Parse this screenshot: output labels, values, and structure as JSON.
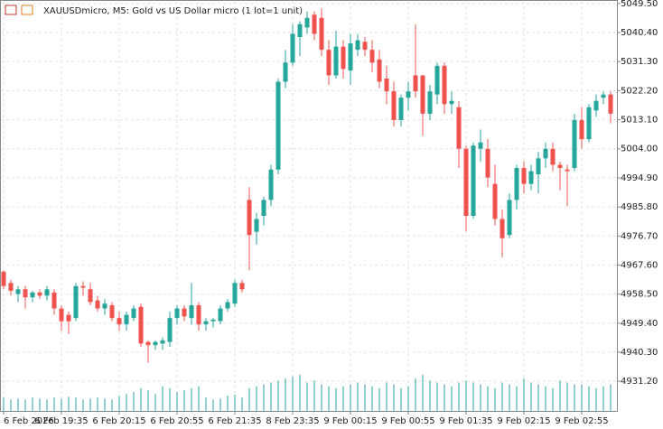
{
  "chart_data": {
    "type": "candlestick",
    "title": "XAUUSDmicro, M5:  Gold vs US Dollar micro (1 lot=1 unit)",
    "up_color": "#26a69a",
    "down_color": "#ef5350",
    "volume_color": "#26a69a",
    "grid": true,
    "ylim": [
      4921.9,
      5050.6
    ],
    "yticks": [
      {
        "value": 5049.5,
        "label": "5049.50"
      },
      {
        "value": 5040.4,
        "label": "5040.40"
      },
      {
        "value": 5031.3,
        "label": "5031.30"
      },
      {
        "value": 5022.2,
        "label": "5022.20"
      },
      {
        "value": 5013.1,
        "label": "5013.10"
      },
      {
        "value": 5004,
        "label": "5004.00"
      },
      {
        "value": 4994.9,
        "label": "4994.90"
      },
      {
        "value": 4985.8,
        "label": "4985.80"
      },
      {
        "value": 4976.7,
        "label": "4976.70"
      },
      {
        "value": 4967.6,
        "label": "4967.60"
      },
      {
        "value": 4958.5,
        "label": "4958.50"
      },
      {
        "value": 4949.4,
        "label": "4949.40"
      },
      {
        "value": 4940.3,
        "label": "4940.30"
      },
      {
        "value": 4931.2,
        "label": "4931.20"
      }
    ],
    "categories": [
      "6 Feb 2026",
      null,
      null,
      null,
      null,
      null,
      null,
      null,
      "6 Feb 19:35",
      null,
      null,
      null,
      null,
      null,
      null,
      null,
      "6 Feb 20:15",
      null,
      null,
      null,
      null,
      null,
      null,
      null,
      "6 Feb 20:55",
      null,
      null,
      null,
      null,
      null,
      null,
      null,
      "6 Feb 21:35",
      null,
      null,
      null,
      null,
      null,
      null,
      null,
      "8 Feb 23:35",
      null,
      null,
      null,
      null,
      null,
      null,
      null,
      "9 Feb 00:15",
      null,
      null,
      null,
      null,
      null,
      null,
      null,
      "9 Feb 00:55",
      null,
      null,
      null,
      null,
      null,
      null,
      null,
      "9 Feb 01:35",
      null,
      null,
      null,
      null,
      null,
      null,
      null,
      "9 Feb 02:15",
      null,
      null,
      null,
      null,
      null,
      null,
      null,
      "9 Feb 02:55",
      null,
      null,
      null,
      null
    ],
    "open": [
      4965.5,
      4962,
      4958.5,
      4960,
      4957.5,
      4959,
      4958,
      4959,
      4954,
      4952,
      4951,
      4961,
      4960,
      4956.5,
      4954,
      4955,
      4951,
      4949,
      4951,
      4954.5,
      4943.5,
      4942.5,
      4943,
      4943.5,
      4951,
      4954,
      4951,
      4955,
      4949,
      4950,
      4950,
      4954,
      4955.5,
      4962,
      4988,
      4978,
      4983,
      4988,
      4997.5,
      5025,
      5031,
      5039,
      5042,
      5046,
      5045,
      5035,
      5027,
      5036,
      5028.5,
      5035,
      5037.5,
      5035,
      5032,
      5026,
      5022,
      5013,
      5020,
      5027,
      5027,
      5015,
      5021,
      5030,
      5018,
      5017,
      5004,
      4983,
      5004,
      5004,
      4993,
      4982,
      4977,
      4988,
      4998,
      4993,
      4996,
      5001,
      5004,
      4999,
      4997.5,
      4998,
      5013,
      5007,
      5016,
      5020,
      5021
    ],
    "high": [
      4966,
      4963,
      4961,
      4961,
      4959.5,
      4960,
      4961,
      4960,
      4955,
      4953,
      4962,
      4962.5,
      4962,
      4958,
      4957,
      4956,
      4953,
      4953,
      4955,
      4955.5,
      4944,
      4944,
      4945,
      4953,
      4955,
      4955,
      4962,
      4956,
      4951,
      4951,
      4955,
      4957,
      4963,
      4963,
      4992,
      4984,
      4989,
      4999,
      5026,
      5035,
      5043,
      5044,
      5047,
      5047,
      5048,
      5038,
      5041,
      5038,
      5040,
      5040,
      5039,
      5038,
      5035,
      5030,
      5025,
      5021,
      5025,
      5043,
      5027,
      5024,
      5031,
      5031,
      5022,
      5019,
      5005,
      5006,
      5010,
      5007,
      4999,
      4985,
      4990,
      4999,
      5000,
      4999,
      5003,
      5006,
      5006,
      5000,
      4999,
      5015,
      5017,
      5018,
      5021,
      5022,
      5022
    ],
    "low": [
      4960,
      4958,
      4956,
      4954,
      4956,
      4957,
      4956.5,
      4952,
      4947,
      4946,
      4950,
      4958,
      4955,
      4953,
      4952,
      4950,
      4947,
      4947,
      4950,
      4942,
      4937,
      4941,
      4941,
      4942,
      4949,
      4950,
      4949,
      4947,
      4947,
      4948,
      4949,
      4953,
      4954.5,
      4959,
      4966,
      4974,
      4980,
      4986,
      4996,
      5023,
      5030,
      5033,
      5040,
      5038,
      5033,
      5024,
      5026,
      5026,
      5024,
      5033,
      5033,
      5028,
      5023,
      5018,
      5011,
      5011,
      5016,
      5020,
      5008,
      5013,
      5018,
      5015,
      5015,
      4998,
      4978,
      4982,
      5000,
      4992,
      4980,
      4970,
      4976,
      4985,
      4990,
      4991,
      4990,
      4998,
      4997,
      4991,
      4986,
      4997,
      5004,
      5006,
      5014,
      5018,
      5012
    ],
    "close": [
      4961,
      4959.5,
      4960,
      4957.5,
      4959,
      4958,
      4960,
      4954,
      4950,
      4950,
      4961,
      4960.5,
      4956,
      4954,
      4955.5,
      4951,
      4949,
      4952,
      4954,
      4943,
      4942.5,
      4943.5,
      4944,
      4951,
      4954,
      4951.5,
      4955,
      4949,
      4950,
      4950.5,
      4954,
      4956,
      4962,
      4960,
      4977,
      4982,
      4988,
      4997.5,
      5025,
      5031,
      5040,
      5043,
      5045,
      5040,
      5035,
      5027,
      5036,
      5029,
      5037,
      5038,
      5035,
      5031,
      5025,
      5022,
      5013,
      5020,
      5022,
      5022,
      5015,
      5022,
      5030,
      5018,
      5019,
      5004,
      4983,
      5005,
      5006,
      4995,
      4982,
      4976,
      4988,
      4998,
      4993,
      4997,
      5001,
      5004,
      4999,
      4998,
      4997,
      5013,
      5007,
      5017,
      5019,
      5021,
      5015
    ],
    "volume": [
      14,
      12,
      13,
      12,
      14,
      13,
      12,
      14,
      13,
      15,
      14,
      12,
      13,
      14,
      13,
      12,
      16,
      18,
      20,
      24,
      22,
      18,
      26,
      24,
      20,
      22,
      24,
      26,
      14,
      12,
      13,
      16,
      17,
      14,
      24,
      26,
      28,
      30,
      32,
      34,
      36,
      38,
      30,
      32,
      28,
      26,
      24,
      26,
      28,
      30,
      28,
      26,
      24,
      30,
      28,
      24,
      26,
      34,
      38,
      32,
      30,
      28,
      26,
      30,
      32,
      30,
      28,
      26,
      24,
      30,
      28,
      26,
      34,
      30,
      28,
      26,
      24,
      32,
      30,
      28,
      28,
      26,
      24,
      26,
      28
    ]
  }
}
